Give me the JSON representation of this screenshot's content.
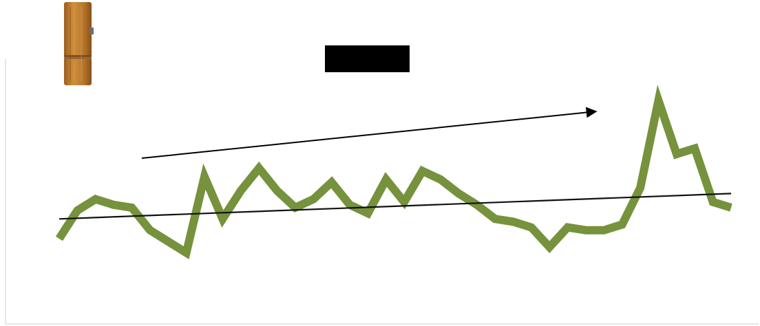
{
  "chart_data": {
    "type": "line",
    "title": "",
    "xlabel": "",
    "ylabel": "",
    "grid": false,
    "legend": "none",
    "x": [
      1,
      2,
      3,
      4,
      5,
      6,
      7,
      8,
      9,
      10,
      11,
      12,
      13,
      14,
      15,
      16,
      17,
      18,
      19,
      20,
      21,
      22,
      23,
      24,
      25,
      26,
      27,
      28,
      29,
      30,
      31,
      32,
      33,
      34,
      35,
      36,
      37,
      38
    ],
    "ylim": [
      0,
      100
    ],
    "series": [
      {
        "values": [
          30,
          40,
          44,
          42,
          41,
          33,
          29,
          25,
          52,
          37,
          47,
          55,
          47,
          41,
          44,
          50,
          42,
          39,
          51,
          43,
          54,
          51,
          46,
          42,
          37,
          36,
          34,
          27,
          34,
          33,
          33,
          35,
          48,
          79,
          60,
          62,
          43,
          41
        ],
        "color": "#76923c"
      }
    ],
    "trend": {
      "start": 37,
      "end": 46,
      "color": "#111111"
    },
    "annotation_arrow": {
      "direction": "up-right",
      "color": "#000000"
    }
  },
  "decor": {
    "clip_image": "wooden-clothespin",
    "redacted_title_color": "#000000"
  }
}
